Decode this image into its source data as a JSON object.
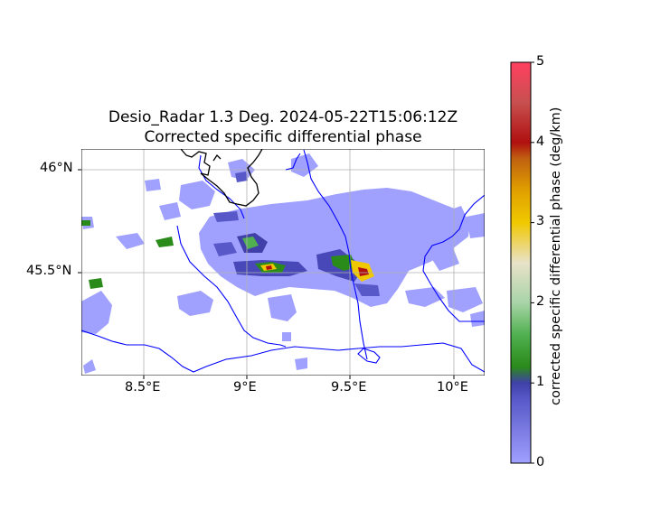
{
  "title": {
    "line1": "Desio_Radar 1.3 Deg. 2024-05-22T15:06:12Z",
    "line2": "Corrected specific differential phase"
  },
  "map": {
    "extent_lon": [
      8.2,
      10.15
    ],
    "extent_lat": [
      45.0,
      46.1
    ],
    "lon_ticks": [
      {
        "value": 8.5,
        "label": "8.5°E"
      },
      {
        "value": 9.0,
        "label": "9°E"
      },
      {
        "value": 9.5,
        "label": "9.5°E"
      },
      {
        "value": 10.0,
        "label": "10°E"
      }
    ],
    "lat_ticks": [
      {
        "value": 46.0,
        "label": "46°N"
      },
      {
        "value": 45.5,
        "label": "45.5°N"
      }
    ],
    "gridlines": true,
    "colors": {
      "border": "#000000",
      "rivers": "#0000ff",
      "gridline": "#b0b0b0",
      "background_echo": "#a0a0ff"
    }
  },
  "colorbar": {
    "label": "corrected specific differential phase (deg/km)",
    "min": 0,
    "max": 5,
    "ticks": [
      "0",
      "1",
      "2",
      "3",
      "4",
      "5"
    ],
    "colormap": [
      {
        "value": 0.0,
        "color": "#a0a0ff"
      },
      {
        "value": 0.8,
        "color": "#5858c8"
      },
      {
        "value": 1.0,
        "color": "#4040a8"
      },
      {
        "value": 1.2,
        "color": "#2a8a1a"
      },
      {
        "value": 1.6,
        "color": "#50b050"
      },
      {
        "value": 2.0,
        "color": "#a8d4a8"
      },
      {
        "value": 2.5,
        "color": "#e8e2c8"
      },
      {
        "value": 3.0,
        "color": "#f0c800"
      },
      {
        "value": 3.4,
        "color": "#e0a000"
      },
      {
        "value": 3.8,
        "color": "#c06010"
      },
      {
        "value": 4.0,
        "color": "#b01010"
      },
      {
        "value": 4.5,
        "color": "#c85050"
      },
      {
        "value": 5.0,
        "color": "#ff4060"
      }
    ]
  }
}
